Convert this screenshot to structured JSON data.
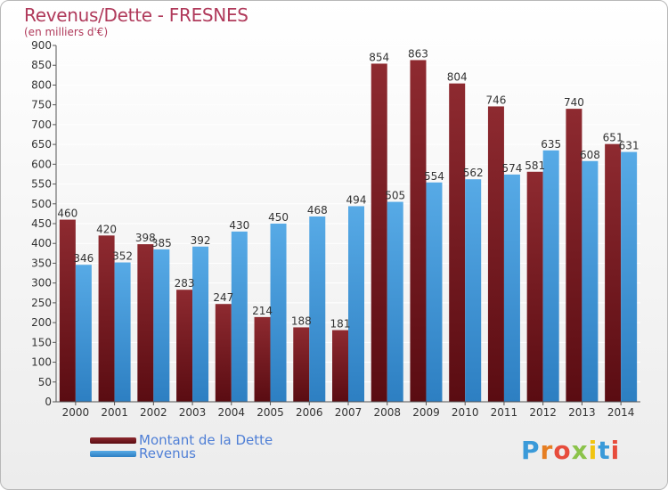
{
  "title": "Revenus/Dette - FRESNES",
  "subtitle": "(en milliers d'€)",
  "logo": {
    "text": "Proxiti",
    "colors": [
      "#3a9ad9",
      "#e67e22",
      "#e74c3c",
      "#8bc34a",
      "#f1c40f",
      "#3a9ad9",
      "#e74c3c"
    ]
  },
  "colors": {
    "dette": "#7a1c24",
    "revenus": "#3d97dc",
    "title": "#b03a5b",
    "legend_text": "#4f7fd6"
  },
  "legend": [
    {
      "label": "Montant de la Dette",
      "color": "#7a1c24"
    },
    {
      "label": "Revenus",
      "color": "#3d97dc"
    }
  ],
  "chart_data": {
    "type": "bar",
    "categories": [
      "2000",
      "2001",
      "2002",
      "2003",
      "2004",
      "2005",
      "2006",
      "2007",
      "2008",
      "2009",
      "2010",
      "2011",
      "2012",
      "2013",
      "2014"
    ],
    "series": [
      {
        "name": "Montant de la Dette",
        "values": [
          460,
          420,
          398,
          283,
          247,
          214,
          188,
          181,
          854,
          863,
          804,
          746,
          581,
          740,
          651
        ]
      },
      {
        "name": "Revenus",
        "values": [
          346,
          352,
          385,
          392,
          430,
          450,
          468,
          494,
          505,
          554,
          562,
          574,
          635,
          608,
          631
        ]
      }
    ],
    "ylim": [
      0,
      900
    ],
    "yticks": [
      0,
      50,
      100,
      150,
      200,
      250,
      300,
      350,
      400,
      450,
      500,
      550,
      600,
      650,
      700,
      750,
      800,
      850,
      900
    ],
    "grid": true,
    "legend_position": "bottom-left"
  }
}
